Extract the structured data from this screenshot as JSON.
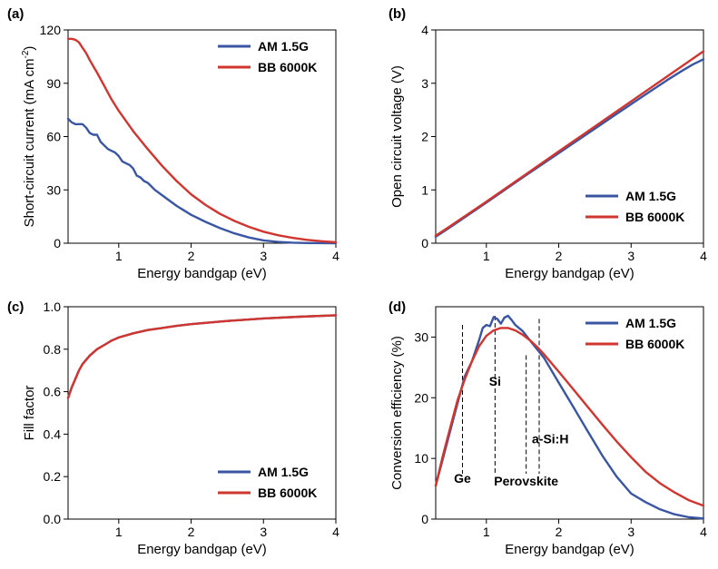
{
  "colors": {
    "am15g": "#3a56a3",
    "bb6000k": "#d0352f"
  },
  "chart_data": [
    {
      "id": "a",
      "panel_label": "(a)",
      "type": "line",
      "xlabel": "Energy bandgap (eV)",
      "ylabel_main": "Short-circuit current (mA cm",
      "ylabel_sup": "-2",
      "ylabel_tail": ")",
      "xlim": [
        0.3,
        4
      ],
      "ylim": [
        0,
        120
      ],
      "xticks": [
        1,
        2,
        3,
        4
      ],
      "yticks": [
        0,
        30,
        60,
        90,
        120
      ],
      "legend_position": "top-right",
      "series": [
        {
          "name": "AM 1.5G",
          "color": "#3a56a3",
          "x": [
            0.3,
            0.35,
            0.4,
            0.5,
            0.55,
            0.6,
            0.65,
            0.7,
            0.75,
            0.8,
            0.85,
            0.9,
            0.95,
            1.0,
            1.05,
            1.1,
            1.15,
            1.2,
            1.25,
            1.3,
            1.35,
            1.4,
            1.5,
            1.6,
            1.7,
            1.8,
            1.9,
            2.0,
            2.2,
            2.4,
            2.6,
            2.8,
            3.0,
            3.2,
            3.4,
            3.6,
            3.8,
            4.0
          ],
          "y": [
            70,
            68,
            67,
            67,
            65,
            62,
            61,
            61,
            57,
            55,
            53,
            52,
            51,
            49,
            46,
            45,
            44,
            42,
            38,
            37,
            35,
            34,
            30,
            27,
            24,
            21,
            18.5,
            16,
            12,
            8.5,
            5.5,
            3.2,
            1.6,
            0.7,
            0.3,
            0.1,
            0.03,
            0
          ]
        },
        {
          "name": "BB 6000K",
          "color": "#d0352f",
          "x": [
            0.3,
            0.35,
            0.4,
            0.45,
            0.5,
            0.55,
            0.6,
            0.7,
            0.8,
            0.9,
            1.0,
            1.2,
            1.4,
            1.6,
            1.8,
            2.0,
            2.2,
            2.4,
            2.6,
            2.8,
            3.0,
            3.2,
            3.4,
            3.6,
            3.8,
            4.0
          ],
          "y": [
            115,
            115,
            114.5,
            113,
            110,
            107,
            103,
            96,
            88.5,
            81,
            74.5,
            63,
            53,
            43.5,
            35,
            27.5,
            21.5,
            16.5,
            12.5,
            9.2,
            6.5,
            4.5,
            3,
            1.9,
            1.1,
            0.5
          ]
        }
      ]
    },
    {
      "id": "b",
      "panel_label": "(b)",
      "type": "line",
      "xlabel": "Energy bandgap (eV)",
      "ylabel_main": "Open circuit voltage (V)",
      "ylabel_sup": "",
      "ylabel_tail": "",
      "xlim": [
        0.3,
        4
      ],
      "ylim": [
        0,
        4
      ],
      "xticks": [
        1,
        2,
        3,
        4
      ],
      "yticks": [
        0,
        1,
        2,
        3,
        4
      ],
      "legend_position": "bottom-right",
      "series": [
        {
          "name": "AM 1.5G",
          "color": "#3a56a3",
          "x": [
            0.3,
            0.5,
            1.0,
            1.5,
            2.0,
            2.5,
            3.0,
            3.3,
            3.5,
            3.7,
            3.85,
            4.0
          ],
          "y": [
            0.12,
            0.3,
            0.76,
            1.23,
            1.69,
            2.15,
            2.61,
            2.88,
            3.06,
            3.23,
            3.35,
            3.45
          ]
        },
        {
          "name": "BB 6000K",
          "color": "#d0352f",
          "x": [
            0.3,
            0.5,
            1.0,
            1.5,
            2.0,
            2.5,
            3.0,
            3.5,
            4.0
          ],
          "y": [
            0.14,
            0.32,
            0.78,
            1.25,
            1.72,
            2.19,
            2.66,
            3.13,
            3.6
          ]
        }
      ]
    },
    {
      "id": "c",
      "panel_label": "(c)",
      "type": "line",
      "xlabel": "Energy bandgap (eV)",
      "ylabel_main": "Fill factor",
      "ylabel_sup": "",
      "ylabel_tail": "",
      "xlim": [
        0.3,
        4
      ],
      "ylim": [
        0,
        1
      ],
      "xticks": [
        1,
        2,
        3,
        4
      ],
      "yticks": [
        0.0,
        0.2,
        0.4,
        0.6,
        0.8,
        1.0
      ],
      "ytick_decimals": 1,
      "legend_position": "bottom-right",
      "series": [
        {
          "name": "AM 1.5G",
          "color": "#3a56a3",
          "x": [
            0.3,
            0.35,
            0.4,
            0.45,
            0.5,
            0.6,
            0.7,
            0.8,
            0.9,
            1.0,
            1.2,
            1.4,
            1.6,
            1.8,
            2.0,
            2.5,
            3.0,
            3.5,
            4.0
          ],
          "y": [
            0.57,
            0.62,
            0.66,
            0.7,
            0.73,
            0.77,
            0.8,
            0.82,
            0.84,
            0.855,
            0.875,
            0.89,
            0.9,
            0.91,
            0.918,
            0.933,
            0.945,
            0.953,
            0.96
          ]
        },
        {
          "name": "BB 6000K",
          "color": "#d0352f",
          "x": [
            0.3,
            0.35,
            0.4,
            0.45,
            0.5,
            0.6,
            0.7,
            0.8,
            0.9,
            1.0,
            1.2,
            1.4,
            1.6,
            1.8,
            2.0,
            2.5,
            3.0,
            3.5,
            4.0
          ],
          "y": [
            0.57,
            0.62,
            0.66,
            0.7,
            0.73,
            0.77,
            0.8,
            0.82,
            0.84,
            0.855,
            0.875,
            0.89,
            0.9,
            0.91,
            0.918,
            0.933,
            0.945,
            0.953,
            0.96
          ]
        }
      ]
    },
    {
      "id": "d",
      "panel_label": "(d)",
      "type": "line",
      "xlabel": "Energy bandgap (eV)",
      "ylabel_main": "Conversion efficiency (%)",
      "ylabel_sup": "",
      "ylabel_tail": "",
      "xlim": [
        0.3,
        4
      ],
      "ylim": [
        0,
        35
      ],
      "xticks": [
        1,
        2,
        3,
        4
      ],
      "yticks": [
        0,
        10,
        20,
        30
      ],
      "legend_position": "top-right",
      "series": [
        {
          "name": "AM 1.5G",
          "color": "#3a56a3",
          "x": [
            0.3,
            0.4,
            0.5,
            0.6,
            0.7,
            0.8,
            0.9,
            0.95,
            1.0,
            1.05,
            1.1,
            1.15,
            1.2,
            1.25,
            1.3,
            1.35,
            1.4,
            1.45,
            1.5,
            1.6,
            1.7,
            1.8,
            2.0,
            2.2,
            2.4,
            2.6,
            2.8,
            3.0,
            3.2,
            3.4,
            3.6,
            3.8,
            4.0
          ],
          "y": [
            5.5,
            10,
            14.5,
            19,
            23.5,
            26,
            29.5,
            31.5,
            32,
            31.8,
            33.3,
            33,
            32.2,
            33.2,
            33.5,
            32.8,
            32,
            31.5,
            31,
            29.5,
            28,
            26.5,
            22.5,
            18.5,
            14.5,
            10.5,
            7,
            4.2,
            2.8,
            1.6,
            0.8,
            0.3,
            0.1
          ]
        },
        {
          "name": "BB 6000K",
          "color": "#d0352f",
          "x": [
            0.3,
            0.4,
            0.5,
            0.6,
            0.7,
            0.8,
            0.9,
            1.0,
            1.1,
            1.2,
            1.3,
            1.4,
            1.5,
            1.6,
            1.7,
            1.8,
            2.0,
            2.2,
            2.4,
            2.6,
            2.8,
            3.0,
            3.2,
            3.4,
            3.6,
            3.8,
            4.0
          ],
          "y": [
            5.5,
            10.5,
            15,
            19.5,
            23,
            26,
            28.5,
            30.2,
            31.1,
            31.5,
            31.5,
            31.1,
            30.4,
            29.5,
            28.4,
            27.1,
            24.3,
            21.4,
            18.5,
            15.6,
            12.8,
            10.2,
            7.8,
            5.9,
            4.4,
            3.1,
            2.2
          ]
        }
      ],
      "annotations": [
        {
          "label": "Ge",
          "x": 0.67,
          "y_top": 32,
          "label_y": 6,
          "anchor": "middle"
        },
        {
          "label": "Si",
          "x": 1.12,
          "y_top": 33.5,
          "label_y": 22,
          "anchor": "middle"
        },
        {
          "label": "Perovskite",
          "x": 1.55,
          "y_top": 27,
          "label_y": 5.5,
          "anchor": "middle"
        },
        {
          "label": "a-Si:H",
          "x": 1.73,
          "y_top": 33,
          "label_y": 12.5,
          "anchor": "start"
        }
      ]
    }
  ]
}
